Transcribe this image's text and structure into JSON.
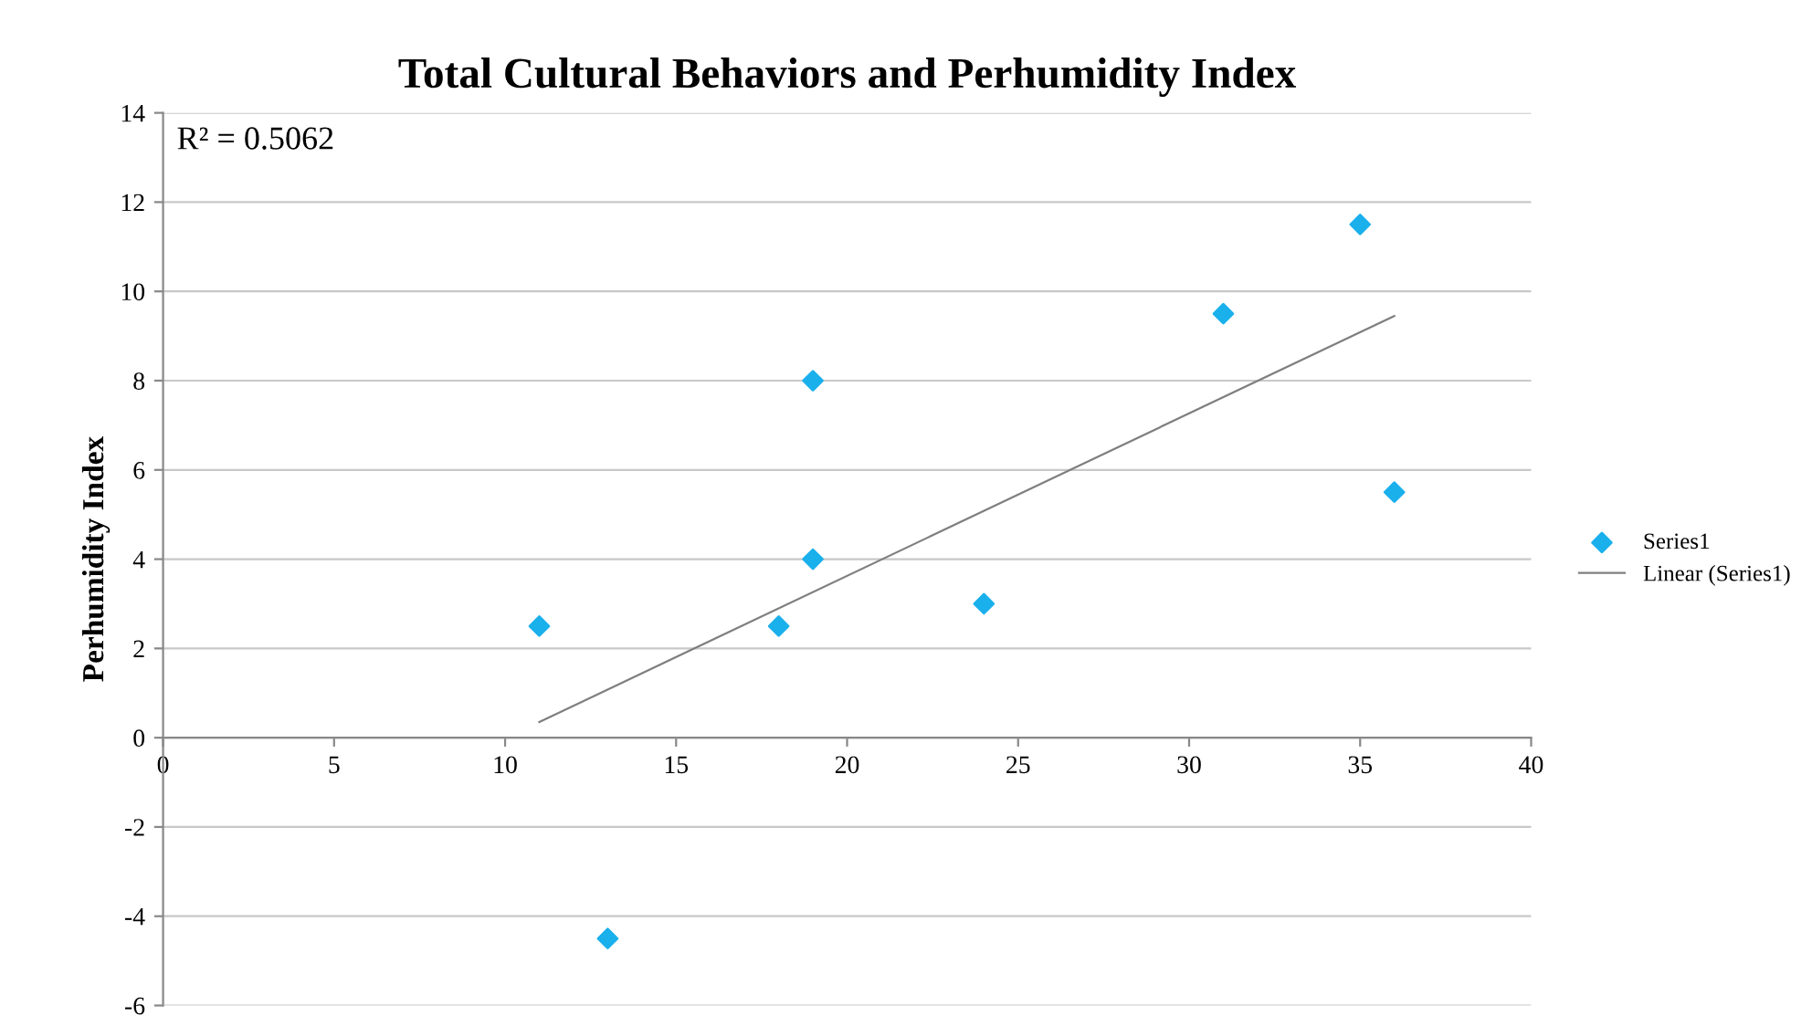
{
  "chart_data": {
    "type": "scatter",
    "title": "Total Cultural Behaviors and Perhumidity Index",
    "ylabel": "Perhumidity Index",
    "annotations": [
      "R² = 0.5062"
    ],
    "series": [
      {
        "name": "Series1",
        "color": "#1ab0ec",
        "marker": "diamond",
        "x": [
          11,
          13,
          18,
          19,
          19,
          24,
          31,
          35,
          36
        ],
        "values": [
          2.5,
          -4.5,
          2.5,
          8,
          4,
          3,
          9.5,
          11.5,
          5.5
        ]
      },
      {
        "name": "Linear (Series1)",
        "type": "line",
        "color": "#7f7f7f",
        "marker": "none",
        "line_style": "solid",
        "x": [
          11,
          36
        ],
        "values": [
          0.35,
          9.45
        ]
      }
    ],
    "xlim": [
      0,
      40
    ],
    "xticks": [
      0,
      5,
      10,
      15,
      20,
      25,
      30,
      35,
      40
    ],
    "ylim": [
      -6,
      14
    ],
    "yticks": [
      -6,
      -4,
      -2,
      0,
      2,
      4,
      6,
      8,
      10,
      12,
      14
    ],
    "grid": "y",
    "legend": "right"
  }
}
